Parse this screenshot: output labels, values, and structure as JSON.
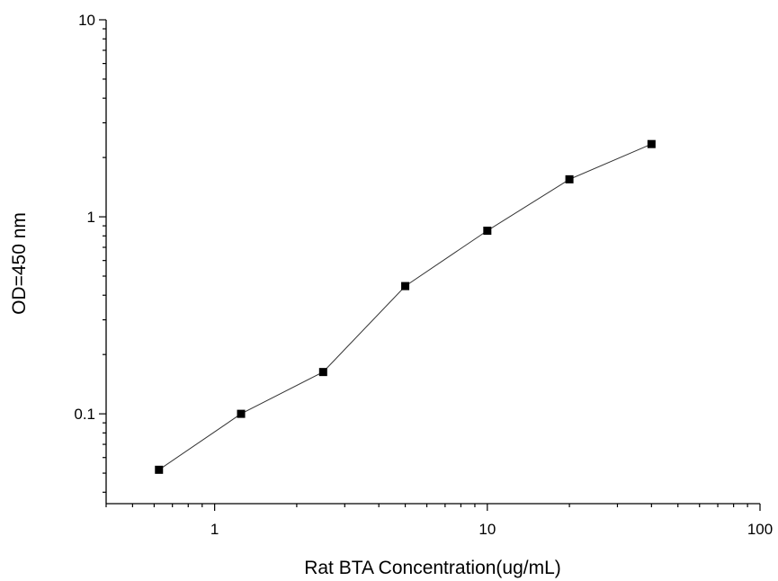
{
  "chart_data": {
    "type": "scatter",
    "title": "",
    "xlabel": "Rat BTA Concentration(ug/mL)",
    "ylabel": "OD=450 nm",
    "xscale": "log",
    "yscale": "log",
    "xlim": [
      0.4,
      100
    ],
    "ylim": [
      0.035,
      10
    ],
    "xticks": [
      {
        "value": 1,
        "label": "1"
      },
      {
        "value": 10,
        "label": "10"
      },
      {
        "value": 100,
        "label": "100"
      }
    ],
    "yticks": [
      {
        "value": 0.1,
        "label": "0.1"
      },
      {
        "value": 1,
        "label": "1"
      },
      {
        "value": 10,
        "label": "10"
      }
    ],
    "grid": false,
    "marker": "square",
    "line": "connected",
    "series": [
      {
        "x": [
          0.625,
          1.25,
          2.5,
          5,
          10,
          20,
          40
        ],
        "y": [
          0.052,
          0.1,
          0.163,
          0.445,
          0.85,
          1.55,
          2.34
        ]
      }
    ]
  }
}
